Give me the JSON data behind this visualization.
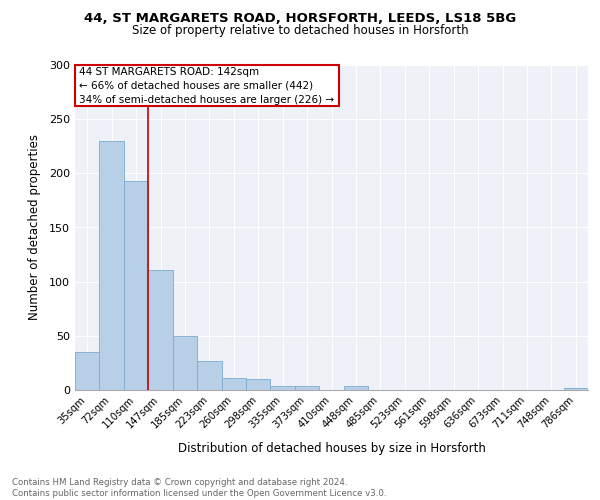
{
  "title_line1": "44, ST MARGARETS ROAD, HORSFORTH, LEEDS, LS18 5BG",
  "title_line2": "Size of property relative to detached houses in Horsforth",
  "xlabel": "Distribution of detached houses by size in Horsforth",
  "ylabel": "Number of detached properties",
  "categories": [
    "35sqm",
    "72sqm",
    "110sqm",
    "147sqm",
    "185sqm",
    "223sqm",
    "260sqm",
    "298sqm",
    "335sqm",
    "373sqm",
    "410sqm",
    "448sqm",
    "485sqm",
    "523sqm",
    "561sqm",
    "598sqm",
    "636sqm",
    "673sqm",
    "711sqm",
    "748sqm",
    "786sqm"
  ],
  "values": [
    35,
    230,
    193,
    111,
    50,
    27,
    11,
    10,
    4,
    4,
    0,
    4,
    0,
    0,
    0,
    0,
    0,
    0,
    0,
    0,
    2
  ],
  "bar_color": "#b8cfe8",
  "bar_edge_color": "#7aadcf",
  "vline_x": 3,
  "vline_color": "#cc0000",
  "annotation_line1": "44 ST MARGARETS ROAD: 142sqm",
  "annotation_line2": "← 66% of detached houses are smaller (442)",
  "annotation_line3": "34% of semi-detached houses are larger (226) →",
  "annotation_box_color": "#cc0000",
  "ylim": [
    0,
    300
  ],
  "yticks": [
    0,
    50,
    100,
    150,
    200,
    250,
    300
  ],
  "footer_line1": "Contains HM Land Registry data © Crown copyright and database right 2024.",
  "footer_line2": "Contains public sector information licensed under the Open Government Licence v3.0.",
  "plot_bg_color": "#eef2f8",
  "grid_color": "#ffffff"
}
